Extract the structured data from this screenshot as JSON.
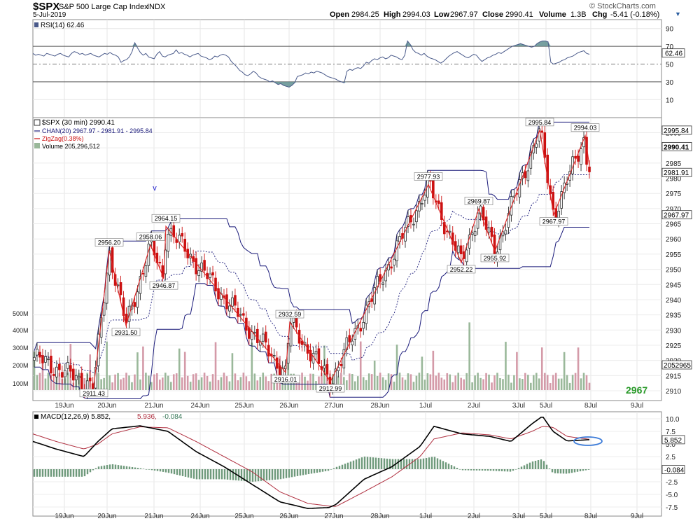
{
  "header": {
    "symbol": "$SPX",
    "name": "S&P 500 Large Cap Index",
    "exchange": "INDX",
    "source": "© StockCharts.com",
    "date": "5-Jul-2019",
    "open_label": "Open",
    "open": "2984.25",
    "high_label": "High",
    "high": "2994.03",
    "low_label": "Low",
    "low": "2967.97",
    "close_label": "Close",
    "close": "2990.41",
    "volume_label": "Volume",
    "volume": "1.3B",
    "chg_label": "Chg",
    "chg": "-5.41 (-0.18%)",
    "chg_arrow": "▼"
  },
  "rsi": {
    "label": "RSI(14) 62.46",
    "current": "62.46",
    "ticks": [
      90,
      70,
      50,
      30,
      10
    ],
    "fill_color": "#5f8f8f",
    "values": [
      62,
      60,
      61,
      60,
      59,
      62,
      61,
      60,
      59,
      61,
      62,
      60,
      59,
      58,
      62,
      64,
      63,
      61,
      62,
      60,
      61,
      62,
      60,
      59,
      58,
      60,
      62,
      61,
      63,
      61,
      60,
      58,
      52,
      54,
      55,
      58,
      64,
      74,
      68,
      63,
      60,
      62,
      58,
      57,
      56,
      61,
      64,
      59,
      58,
      60,
      61,
      62,
      66,
      62,
      63,
      61,
      60,
      58,
      60,
      61,
      62,
      59,
      58,
      57,
      55,
      56,
      59,
      58,
      60,
      61,
      60,
      58,
      53,
      50,
      47,
      43,
      41,
      38,
      37,
      39,
      42,
      40,
      36,
      34,
      33,
      32,
      30,
      31,
      29,
      27,
      28,
      26,
      25,
      24,
      26,
      29,
      36,
      37,
      38,
      40,
      39,
      41,
      40,
      42,
      41,
      40,
      38,
      36,
      35,
      34,
      33,
      31,
      30,
      29,
      42,
      44,
      43,
      45,
      46,
      45,
      48,
      52,
      51,
      54,
      56,
      55,
      57,
      58,
      56,
      57,
      60,
      59,
      58,
      56,
      55,
      60,
      76,
      72,
      66,
      63,
      62,
      60,
      62,
      59,
      57,
      56,
      55,
      53,
      51,
      53,
      56,
      59,
      61,
      63,
      64,
      62,
      60,
      58,
      57,
      59,
      61,
      60,
      56,
      53,
      55,
      57,
      58,
      60,
      61,
      63,
      62,
      64,
      66,
      68,
      70,
      71,
      72,
      73,
      72,
      71,
      70,
      69,
      70,
      73,
      75,
      76,
      76,
      75,
      52,
      50,
      51,
      52,
      54,
      55,
      57,
      58,
      59,
      61,
      63,
      64,
      65,
      62,
      61
    ]
  },
  "price": {
    "label": "$SPX (30 min) 2990.41",
    "chan_label": "CHAN(20) 2967.97 - 2981.91 - 2995.84",
    "zigzag_label": "ZigZag(0.38%)",
    "volume_label": "Volume 205,296,512",
    "ticks": [
      2995,
      2990,
      2985,
      2980,
      2975,
      2970,
      2965,
      2960,
      2955,
      2950,
      2945,
      2940,
      2935,
      2930,
      2925,
      2920,
      2915,
      2910
    ],
    "vol_ticks": [
      "500M",
      "400M",
      "300M",
      "200M",
      "100M"
    ],
    "tags": [
      "2995.84",
      "2990.41",
      "2981.91",
      "2967.97",
      "2052965"
    ],
    "corner_value": "2967",
    "v_marker": "v",
    "x_labels": [
      "19Jun",
      "20Jun",
      "21Jun",
      "24Jun",
      "25Jun",
      "26Jun",
      "27Jun",
      "28Jun",
      "1Jul",
      "2Jul",
      "3Jul",
      "5Jul",
      "8Jul",
      "9Jul"
    ],
    "zigzag_points": [
      [
        "2911.43",
        ""
      ],
      [
        "2956.20",
        ""
      ],
      [
        "2931.50",
        ""
      ],
      [
        "2958.06",
        ""
      ],
      [
        "2946.87",
        ""
      ],
      [
        "2964.15",
        ""
      ],
      [
        "2916.01",
        ""
      ],
      [
        "2932.59",
        ""
      ],
      [
        "2912.99",
        ""
      ],
      [
        "2977.93",
        ""
      ],
      [
        "2952.22",
        ""
      ],
      [
        "2969.87",
        ""
      ],
      [
        "2955.92",
        ""
      ],
      [
        "2995.84",
        ""
      ],
      [
        "2967.97",
        ""
      ],
      [
        "2994.03",
        ""
      ]
    ],
    "pivots": [
      {
        "label": "2911.43",
        "value": 2911.43,
        "pos": "below"
      },
      {
        "label": "2956.20",
        "value": 2956.2,
        "pos": "above"
      },
      {
        "label": "2931.50",
        "value": 2931.5,
        "pos": "below"
      },
      {
        "label": "2958.06",
        "value": 2958.06,
        "pos": "above"
      },
      {
        "label": "2946.87",
        "value": 2946.87,
        "pos": "below"
      },
      {
        "label": "2964.15",
        "value": 2964.15,
        "pos": "above"
      },
      {
        "label": "2916.01",
        "value": 2916.01,
        "pos": "below"
      },
      {
        "label": "2932.59",
        "value": 2932.59,
        "pos": "above"
      },
      {
        "label": "2912.99",
        "value": 2912.99,
        "pos": "below"
      },
      {
        "label": "2977.93",
        "value": 2977.93,
        "pos": "above"
      },
      {
        "label": "2952.22",
        "value": 2952.22,
        "pos": "below"
      },
      {
        "label": "2969.87",
        "value": 2969.87,
        "pos": "above"
      },
      {
        "label": "2955.92",
        "value": 2955.92,
        "pos": "below"
      },
      {
        "label": "2995.84",
        "value": 2995.84,
        "pos": "above"
      },
      {
        "label": "2967.97",
        "value": 2967.97,
        "pos": "below"
      },
      {
        "label": "2994.03",
        "value": 2994.03,
        "pos": "above"
      }
    ],
    "colors": {
      "up": "#2b2b2b",
      "down": "#cc1111",
      "zigzag": "#dd2222",
      "channel": "#1a1a7a",
      "vol_up": "#9ab89a",
      "vol_down": "#d49aa8",
      "corner": "#2a9a2a"
    }
  },
  "macd": {
    "label_prefix": "MACD(12,26,9)",
    "macd_value": "5.852",
    "signal_value": "5.936",
    "hist_value": "-0.084",
    "ticks": [
      "10.0",
      "7.5",
      "5.0",
      "2.5",
      "0.0",
      "-2.5",
      "-5.0",
      "-7.5"
    ],
    "tags": [
      "5.852",
      "-0.084"
    ],
    "x_labels": [
      "19Jun",
      "20Jun",
      "21Jun",
      "24Jun",
      "25Jun",
      "26Jun",
      "27Jun",
      "28Jun",
      "1Jul",
      "2Jul",
      "3Jul",
      "5Jul",
      "8Jul",
      "9Jul"
    ]
  },
  "chart_data": {
    "type": "line",
    "title": "$SPX S&P 500 Large Cap Index INDX",
    "x": [
      "19Jun",
      "20Jun",
      "21Jun",
      "24Jun",
      "25Jun",
      "26Jun",
      "27Jun",
      "28Jun",
      "1Jul",
      "2Jul",
      "3Jul",
      "5Jul"
    ],
    "series": [
      {
        "name": "ZigZag(0.38%)",
        "pivot_values": [
          2911.43,
          2956.2,
          2931.5,
          2958.06,
          2946.87,
          2964.15,
          2916.01,
          2932.59,
          2912.99,
          2977.93,
          2952.22,
          2969.87,
          2955.92,
          2995.84,
          2967.97,
          2994.03
        ]
      },
      {
        "name": "CHAN(20)",
        "last": [
          2967.97,
          2981.91,
          2995.84
        ]
      }
    ],
    "ylim": [
      2908,
      2999
    ],
    "rsi_ylim": [
      0,
      100
    ],
    "macd_ylim": [
      -8.5,
      11.5
    ]
  }
}
